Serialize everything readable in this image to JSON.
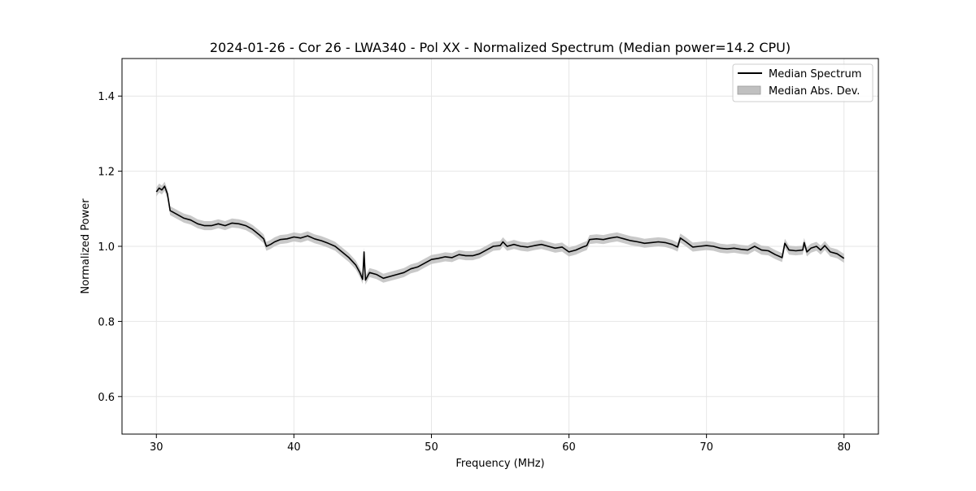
{
  "chart_data": {
    "type": "line",
    "title": "2024-01-26 - Cor 26 - LWA340 - Pol XX - Normalized Spectrum (Median power=14.2 CPU)",
    "xlabel": "Frequency (MHz)",
    "ylabel": "Normalized Power",
    "xlim": [
      27.5,
      82.5
    ],
    "ylim": [
      0.5,
      1.5
    ],
    "xticks": [
      30,
      40,
      50,
      60,
      70,
      80
    ],
    "yticks": [
      0.6,
      0.8,
      1.0,
      1.2,
      1.4
    ],
    "grid": true,
    "legend_position": "top-right",
    "series": [
      {
        "name": "Median Spectrum",
        "color": "#000000",
        "x": [
          30.0,
          30.2,
          30.4,
          30.6,
          30.8,
          31.0,
          31.5,
          32.0,
          32.5,
          33.0,
          33.5,
          34.0,
          34.5,
          35.0,
          35.5,
          36.0,
          36.5,
          37.0,
          37.5,
          37.8,
          38.0,
          38.3,
          38.6,
          39.0,
          39.5,
          40.0,
          40.5,
          41.0,
          41.5,
          42.0,
          42.5,
          43.0,
          43.5,
          44.0,
          44.5,
          44.8,
          45.0,
          45.1,
          45.2,
          45.5,
          46.0,
          46.5,
          47.0,
          47.5,
          48.0,
          48.5,
          49.0,
          49.5,
          50.0,
          50.5,
          51.0,
          51.5,
          52.0,
          52.5,
          53.0,
          53.5,
          54.0,
          54.5,
          55.0,
          55.2,
          55.5,
          56.0,
          56.5,
          57.0,
          57.5,
          58.0,
          58.5,
          59.0,
          59.5,
          60.0,
          60.5,
          61.0,
          61.3,
          61.5,
          62.0,
          62.5,
          63.0,
          63.5,
          64.0,
          64.5,
          65.0,
          65.5,
          66.0,
          66.5,
          67.0,
          67.5,
          67.9,
          68.1,
          68.5,
          69.0,
          69.5,
          70.0,
          70.5,
          71.0,
          71.5,
          72.0,
          72.5,
          73.0,
          73.5,
          74.0,
          74.5,
          75.0,
          75.5,
          75.7,
          76.0,
          76.5,
          77.0,
          77.1,
          77.3,
          77.6,
          78.0,
          78.3,
          78.6,
          79.0,
          79.5,
          80.0
        ],
        "y": [
          1.145,
          1.155,
          1.15,
          1.16,
          1.14,
          1.095,
          1.085,
          1.075,
          1.07,
          1.06,
          1.055,
          1.055,
          1.06,
          1.055,
          1.062,
          1.06,
          1.055,
          1.045,
          1.03,
          1.02,
          1.0,
          1.005,
          1.012,
          1.018,
          1.02,
          1.025,
          1.022,
          1.028,
          1.02,
          1.015,
          1.008,
          1.0,
          0.985,
          0.97,
          0.95,
          0.93,
          0.912,
          0.985,
          0.91,
          0.93,
          0.925,
          0.915,
          0.92,
          0.925,
          0.93,
          0.94,
          0.945,
          0.955,
          0.965,
          0.968,
          0.972,
          0.97,
          0.978,
          0.975,
          0.975,
          0.98,
          0.99,
          1.0,
          1.002,
          1.012,
          1.0,
          1.005,
          1.0,
          0.998,
          1.002,
          1.005,
          1.0,
          0.995,
          0.998,
          0.985,
          0.99,
          0.998,
          1.002,
          1.018,
          1.02,
          1.018,
          1.022,
          1.025,
          1.02,
          1.015,
          1.012,
          1.008,
          1.01,
          1.012,
          1.01,
          1.005,
          0.998,
          1.022,
          1.012,
          0.998,
          1.0,
          1.002,
          1.0,
          0.995,
          0.993,
          0.995,
          0.992,
          0.99,
          1.0,
          0.99,
          0.988,
          0.978,
          0.97,
          1.008,
          0.99,
          0.988,
          0.99,
          1.01,
          0.985,
          0.995,
          1.0,
          0.99,
          1.002,
          0.985,
          0.98,
          0.968
        ]
      },
      {
        "name": "Median Abs. Dev.",
        "color": "#c0c0c0",
        "band_halfwidth": 0.012
      }
    ]
  }
}
